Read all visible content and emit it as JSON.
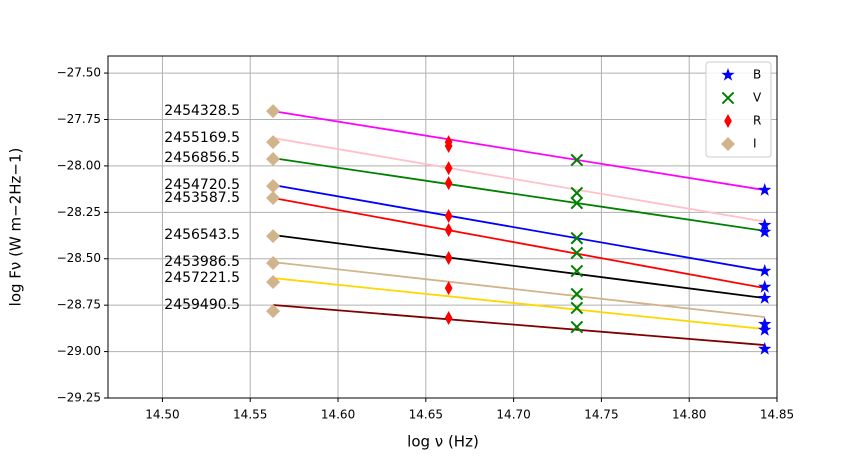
{
  "chart_data": {
    "type": "scatter",
    "xlabel": "log ν (Hz)",
    "ylabel": "log Fν (W m−2Hz−1)",
    "xlim": [
      14.469,
      14.85
    ],
    "ylim": [
      -29.25,
      -27.408
    ],
    "xticks": [
      {
        "value": 14.5,
        "label": "14.50"
      },
      {
        "value": 14.55,
        "label": "14.55"
      },
      {
        "value": 14.6,
        "label": "14.60"
      },
      {
        "value": 14.65,
        "label": "14.65"
      },
      {
        "value": 14.7,
        "label": "14.70"
      },
      {
        "value": 14.75,
        "label": "14.75"
      },
      {
        "value": 14.8,
        "label": "14.80"
      },
      {
        "value": 14.85,
        "label": "14.85"
      }
    ],
    "yticks": [
      {
        "value": -29.25,
        "label": "−29.25"
      },
      {
        "value": -29.0,
        "label": "−29.00"
      },
      {
        "value": -28.75,
        "label": "−28.75"
      },
      {
        "value": -28.5,
        "label": "−28.50"
      },
      {
        "value": -28.25,
        "label": "−28.25"
      },
      {
        "value": -28.0,
        "label": "−28.00"
      },
      {
        "value": -27.75,
        "label": "−27.75"
      },
      {
        "value": -27.5,
        "label": "−27.50"
      }
    ],
    "grid": true,
    "legend": "upper right",
    "series": [
      {
        "name": "B",
        "color": "#0000ff",
        "marker": "star",
        "x": [
          14.843,
          14.843,
          14.843,
          14.843,
          14.843,
          14.843,
          14.843,
          14.843,
          14.843
        ],
        "values": [
          -28.13,
          -28.319,
          -28.356,
          -28.566,
          -28.652,
          -28.712,
          -28.852,
          -28.884,
          -28.986
        ]
      },
      {
        "name": "V",
        "color": "#008000",
        "marker": "x",
        "x": [
          14.736,
          14.736,
          14.736,
          14.736,
          14.736,
          14.736,
          14.736,
          14.736,
          14.736
        ],
        "values": [
          -27.968,
          -28.146,
          -28.2,
          -28.389,
          -28.469,
          -28.566,
          -28.69,
          -28.765,
          -28.868
        ]
      },
      {
        "name": "R",
        "color": "#ff0000",
        "marker": "thin-diamond",
        "x": [
          14.663,
          14.663,
          14.663,
          14.663,
          14.663,
          14.663,
          14.663,
          14.663,
          14.663
        ],
        "values": [
          -27.872,
          -27.893,
          -28.012,
          -28.093,
          -28.27,
          -28.345,
          -28.496,
          -28.658,
          -28.819
        ]
      },
      {
        "name": "I",
        "color": "#d2b48c",
        "marker": "diamond",
        "x": [
          14.563,
          14.563,
          14.563,
          14.563,
          14.563,
          14.563,
          14.563,
          14.563,
          14.563
        ],
        "values": [
          -27.705,
          -27.872,
          -27.963,
          -28.108,
          -28.173,
          -28.378,
          -28.523,
          -28.625,
          -28.782
        ]
      }
    ],
    "fits": [
      {
        "label": "2454328.5",
        "color": "#ff00ff",
        "x": [
          14.563,
          14.843
        ],
        "values": [
          -27.705,
          -28.13
        ]
      },
      {
        "label": "2455169.5",
        "color": "#ffc0cb",
        "x": [
          14.563,
          14.843
        ],
        "values": [
          -27.85,
          -28.3
        ]
      },
      {
        "label": "2456856.5",
        "color": "#008000",
        "x": [
          14.563,
          14.843
        ],
        "values": [
          -27.958,
          -28.35
        ]
      },
      {
        "label": "2454720.5",
        "color": "#0000ff",
        "x": [
          14.563,
          14.843
        ],
        "values": [
          -28.103,
          -28.566
        ]
      },
      {
        "label": "2453587.5",
        "color": "#ff0000",
        "x": [
          14.563,
          14.843
        ],
        "values": [
          -28.173,
          -28.658
        ]
      },
      {
        "label": "2456543.5",
        "color": "#000000",
        "x": [
          14.563,
          14.843
        ],
        "values": [
          -28.372,
          -28.712
        ]
      },
      {
        "label": "2453986.5",
        "color": "#d2b48c",
        "x": [
          14.563,
          14.843
        ],
        "values": [
          -28.518,
          -28.814
        ]
      },
      {
        "label": "2457221.5",
        "color": "#ffd700",
        "x": [
          14.563,
          14.843
        ],
        "values": [
          -28.604,
          -28.879
        ]
      },
      {
        "label": "2459490.5",
        "color": "#800000",
        "x": [
          14.563,
          14.843
        ],
        "values": [
          -28.749,
          -28.965
        ]
      }
    ]
  }
}
